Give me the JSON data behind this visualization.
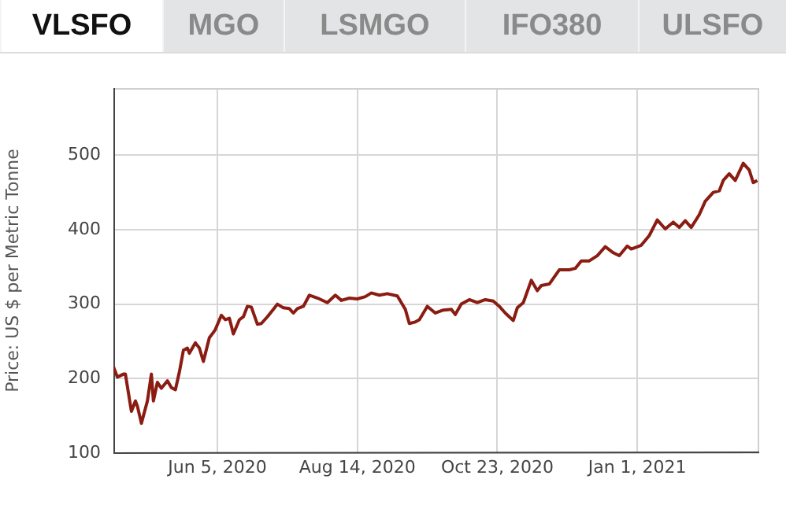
{
  "chart_data": {
    "type": "line",
    "title": "VLSFO",
    "annotations": [
      "MGO",
      "LSMGO",
      "IFO380",
      "ULSFO"
    ],
    "ylabel": "Price: US $ per Metric Tonne",
    "color": "#8b1c12",
    "grid": true,
    "marker": "none",
    "line_style": "solid",
    "xlim": [
      "2020-04-14",
      "2021-03-03"
    ],
    "xticks": [
      {
        "value": "2020-06-05",
        "label": "Jun 5, 2020"
      },
      {
        "value": "2020-08-14",
        "label": "Aug 14, 2020"
      },
      {
        "value": "2020-10-23",
        "label": "Oct 23, 2020"
      },
      {
        "value": "2021-01-01",
        "label": "Jan 1, 2021"
      }
    ],
    "ylim": [
      100,
      590
    ],
    "yticks": [
      100,
      200,
      300,
      400,
      500
    ],
    "x": [
      "2020-04-14",
      "2020-04-16",
      "2020-04-19",
      "2020-04-20",
      "2020-04-23",
      "2020-04-25",
      "2020-04-26",
      "2020-04-28",
      "2020-05-01",
      "2020-05-03",
      "2020-05-04",
      "2020-05-06",
      "2020-05-08",
      "2020-05-11",
      "2020-05-13",
      "2020-05-15",
      "2020-05-17",
      "2020-05-19",
      "2020-05-21",
      "2020-05-22",
      "2020-05-25",
      "2020-05-27",
      "2020-05-29",
      "2020-06-01",
      "2020-06-03",
      "2020-06-04",
      "2020-06-07",
      "2020-06-09",
      "2020-06-11",
      "2020-06-13",
      "2020-06-16",
      "2020-06-18",
      "2020-06-20",
      "2020-06-22",
      "2020-06-25",
      "2020-06-27",
      "2020-06-30",
      "2020-07-03",
      "2020-07-05",
      "2020-07-08",
      "2020-07-11",
      "2020-07-13",
      "2020-07-15",
      "2020-07-18",
      "2020-07-21",
      "2020-07-23",
      "2020-07-26",
      "2020-07-30",
      "2020-08-03",
      "2020-08-06",
      "2020-08-10",
      "2020-08-14",
      "2020-08-18",
      "2020-08-21",
      "2020-08-25",
      "2020-08-29",
      "2020-09-03",
      "2020-09-07",
      "2020-09-09",
      "2020-09-12",
      "2020-09-14",
      "2020-09-18",
      "2020-09-22",
      "2020-09-26",
      "2020-09-30",
      "2020-10-02",
      "2020-10-05",
      "2020-10-09",
      "2020-10-13",
      "2020-10-17",
      "2020-10-21",
      "2020-10-24",
      "2020-10-27",
      "2020-10-31",
      "2020-11-02",
      "2020-11-05",
      "2020-11-09",
      "2020-11-12",
      "2020-11-14",
      "2020-11-18",
      "2020-11-23",
      "2020-11-28",
      "2020-12-01",
      "2020-12-04",
      "2020-12-08",
      "2020-12-12",
      "2020-12-16",
      "2020-12-20",
      "2020-12-23",
      "2020-12-27",
      "2020-12-29",
      "2021-01-03",
      "2021-01-07",
      "2021-01-11",
      "2021-01-15",
      "2021-01-19",
      "2021-01-22",
      "2021-01-25",
      "2021-01-28",
      "2021-02-01",
      "2021-02-04",
      "2021-02-08",
      "2021-02-11",
      "2021-02-13",
      "2021-02-16",
      "2021-02-19",
      "2021-02-23",
      "2021-02-26",
      "2021-02-28",
      "2021-03-02"
    ],
    "values": [
      216,
      202,
      206,
      206,
      156,
      170,
      163,
      140,
      170,
      206,
      170,
      195,
      187,
      197,
      188,
      185,
      209,
      238,
      241,
      234,
      248,
      241,
      223,
      255,
      262,
      266,
      285,
      279,
      281,
      260,
      279,
      283,
      297,
      296,
      273,
      274,
      283,
      293,
      300,
      295,
      294,
      288,
      294,
      297,
      312,
      310,
      307,
      302,
      312,
      305,
      308,
      307,
      310,
      315,
      312,
      314,
      311,
      293,
      274,
      276,
      279,
      297,
      288,
      292,
      293,
      286,
      300,
      306,
      302,
      306,
      304,
      297,
      288,
      278,
      295,
      302,
      332,
      318,
      325,
      327,
      346,
      346,
      348,
      358,
      358,
      365,
      377,
      369,
      365,
      378,
      374,
      379,
      392,
      413,
      401,
      410,
      403,
      412,
      403,
      420,
      438,
      450,
      452,
      466,
      475,
      466,
      489,
      480,
      463,
      466
    ]
  }
}
